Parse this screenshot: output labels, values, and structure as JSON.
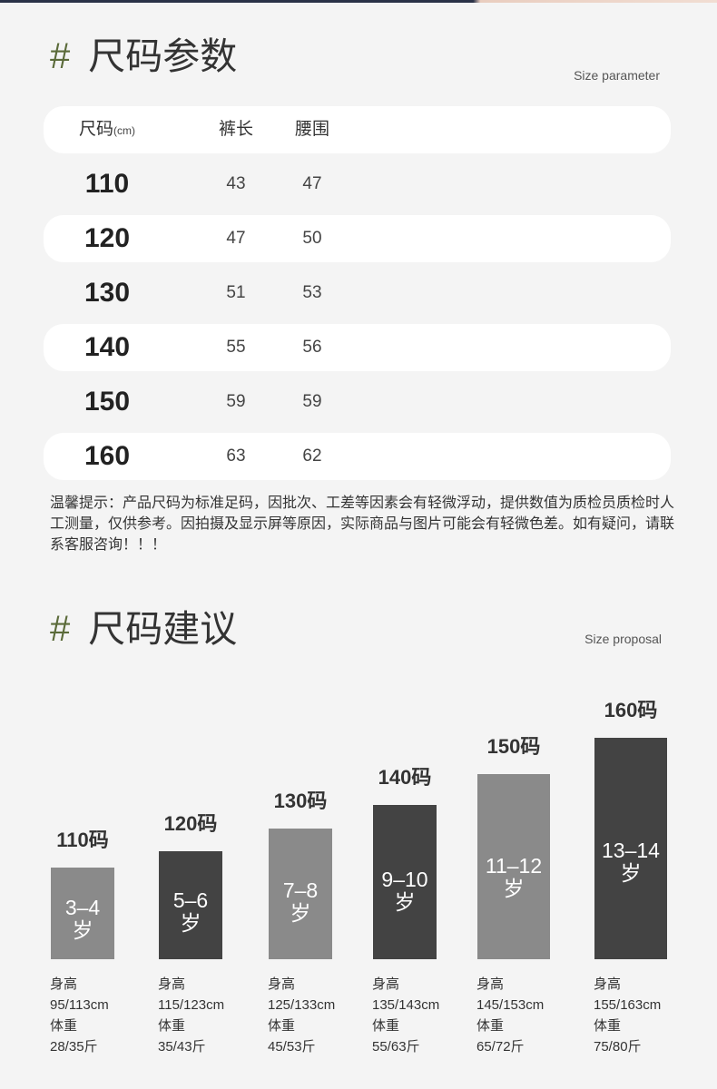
{
  "param_section": {
    "title_mark": "#",
    "title": "尺码参数",
    "title_en": "Size parameter",
    "table": {
      "headers": {
        "size": "尺码",
        "size_unit": "(cm)",
        "length": "裤长",
        "waist": "腰围"
      },
      "rows": [
        {
          "size": "110",
          "length": "43",
          "waist": "47"
        },
        {
          "size": "120",
          "length": "47",
          "waist": "50"
        },
        {
          "size": "130",
          "length": "51",
          "waist": "53"
        },
        {
          "size": "140",
          "length": "55",
          "waist": "56"
        },
        {
          "size": "150",
          "length": "59",
          "waist": "59"
        },
        {
          "size": "160",
          "length": "63",
          "waist": "62"
        }
      ]
    },
    "notice_lines": [
      "温馨提示：产品尺码为标准足码，因批次、工差等因素会有轻微浮动，提供数值为质检员质检时人",
      "工测量，仅供参考。因拍摄及显示屏等原因，实际商品与图片可能会有轻微色差。如有疑问，请联",
      "系客服咨询！！！"
    ]
  },
  "proposal_section": {
    "title_mark": "#",
    "title": "尺码建议",
    "title_en": "Size proposal",
    "items": [
      {
        "size_label": "110码",
        "age_range": "3–4",
        "age_unit": "岁",
        "height_label": "身高",
        "height": "95/113cm",
        "weight_label": "体重",
        "weight": "28/35斤",
        "bar_tone": "light"
      },
      {
        "size_label": "120码",
        "age_range": "5–6",
        "age_unit": "岁",
        "height_label": "身高",
        "height": "115/123cm",
        "weight_label": "体重",
        "weight": "35/43斤",
        "bar_tone": "dark"
      },
      {
        "size_label": "130码",
        "age_range": "7–8",
        "age_unit": "岁",
        "height_label": "身高",
        "height": "125/133cm",
        "weight_label": "体重",
        "weight": "45/53斤",
        "bar_tone": "light"
      },
      {
        "size_label": "140码",
        "age_range": "9–10",
        "age_unit": "岁",
        "height_label": "身高",
        "height": "135/143cm",
        "weight_label": "体重",
        "weight": "55/63斤",
        "bar_tone": "dark"
      },
      {
        "size_label": "150码",
        "age_range": "11–12",
        "age_unit": "岁",
        "height_label": "身高",
        "height": "145/153cm",
        "weight_label": "体重",
        "weight": "65/72斤",
        "bar_tone": "light"
      },
      {
        "size_label": "160码",
        "age_range": "13–14",
        "age_unit": "岁",
        "height_label": "身高",
        "height": "155/163cm",
        "weight_label": "体重",
        "weight": "75/80斤",
        "bar_tone": "dark"
      }
    ]
  },
  "colors": {
    "background": "#f4f4f4",
    "row_highlight": "#ffffff",
    "accent": "#5b6b3a",
    "text": "#333333",
    "bar_light": "#8a8a8a",
    "bar_dark": "#434343"
  }
}
